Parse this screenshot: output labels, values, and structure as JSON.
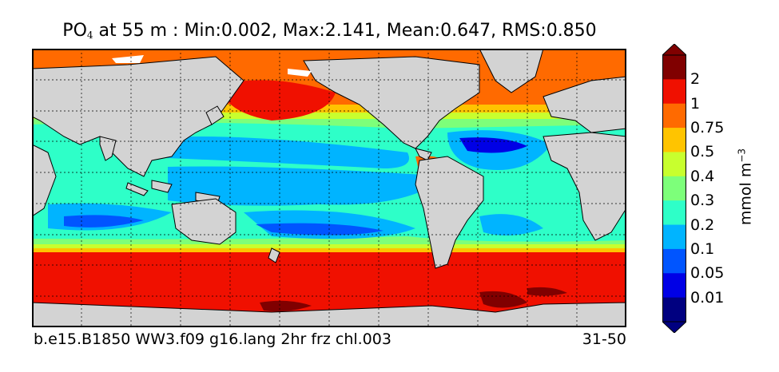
{
  "title": {
    "variable": "PO",
    "subscript": "4",
    "text": "at 55 m : Min:0.002, Max:2.141, Mean:0.647, RMS:0.850"
  },
  "footer": {
    "case_name": "b.e15.B1850 WW3.f09 g16.lang 2hr frz chl.003",
    "years": "31-50"
  },
  "colorbar": {
    "unit": "mmol m",
    "unit_exponent": "−3",
    "labels": [
      "2",
      "1",
      "0.75",
      "0.5",
      "0.4",
      "0.3",
      "0.2",
      "0.1",
      "0.05",
      "0.01"
    ],
    "colors": [
      "#800000",
      "#f01000",
      "#ff6a00",
      "#ffc400",
      "#c8ff2e",
      "#7dff7a",
      "#2effc8",
      "#00b4ff",
      "#0055ff",
      "#0000e6",
      "#000080"
    ],
    "extend": "both"
  },
  "map": {
    "land_color": "#d3d3d3",
    "missing_color": "#ffffff",
    "grid": "dashed",
    "projection": "cylindrical, Pacific-centered"
  }
}
